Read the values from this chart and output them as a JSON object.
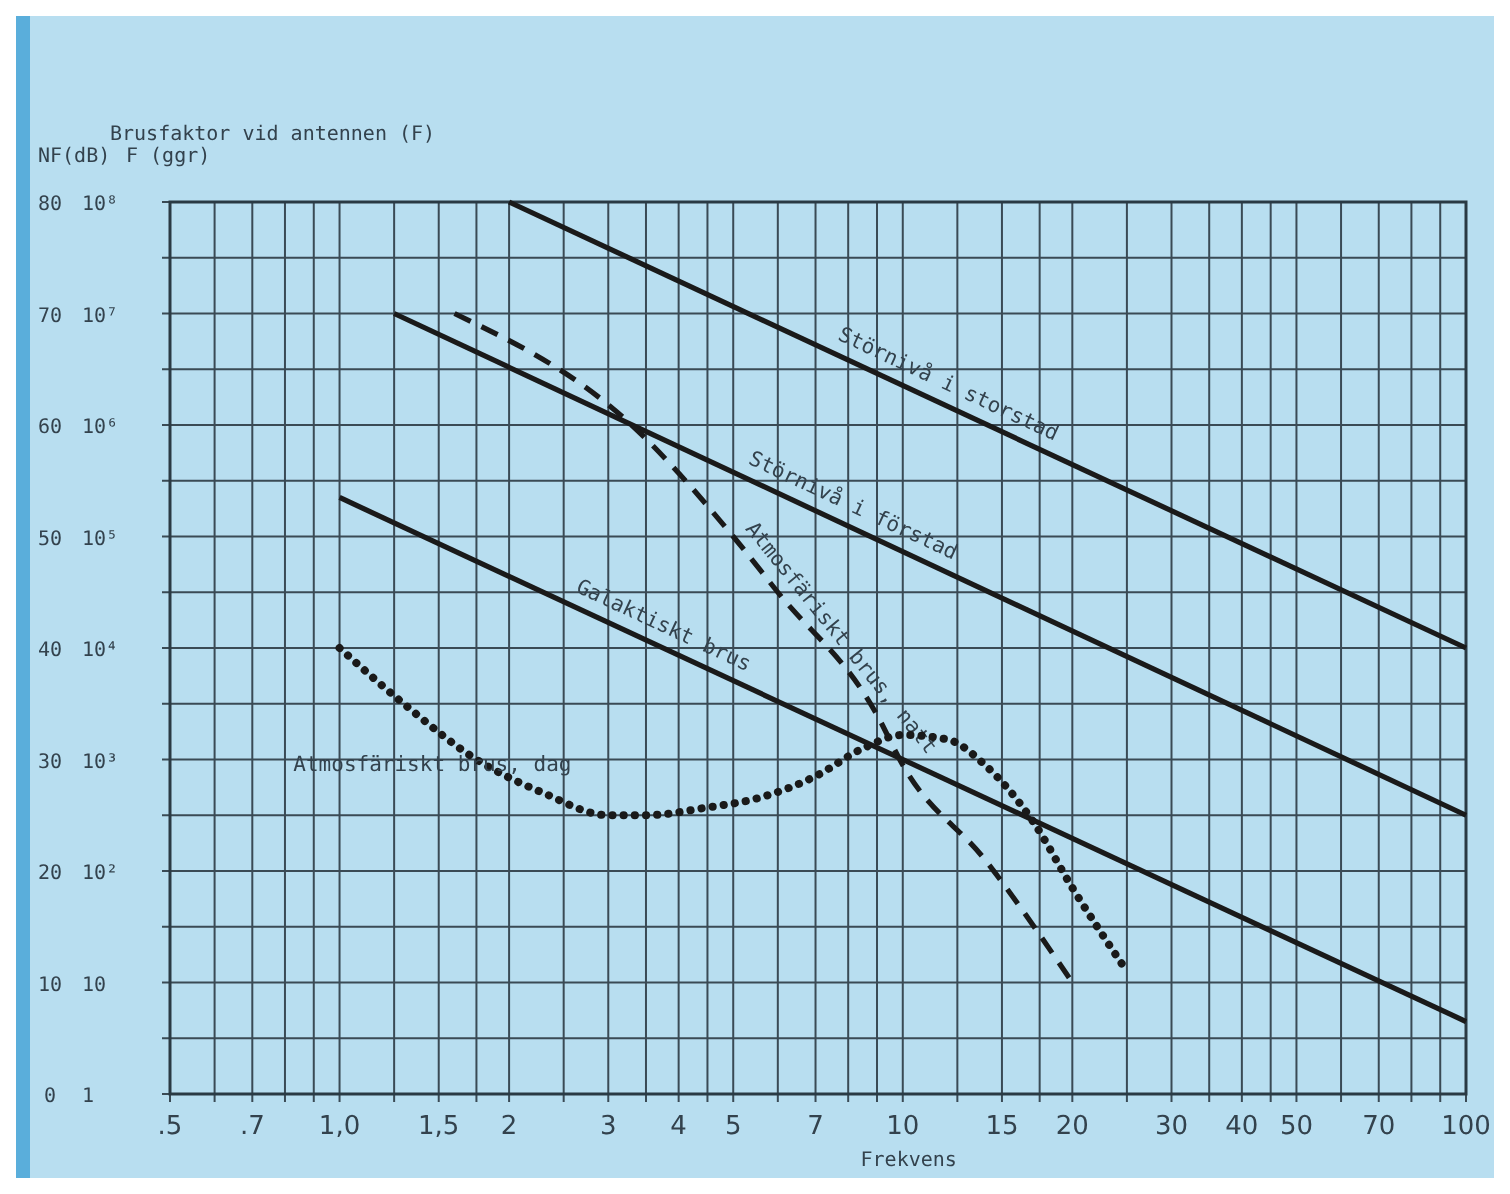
{
  "chart_data": {
    "type": "line",
    "title": "Brusfaktor vid antennen (F)",
    "xlabel": "Frekvens",
    "ylabel": "F (ggr)",
    "y2label": "NF(dB)",
    "log": "xy",
    "grid": true,
    "xlim": [
      0.5,
      100
    ],
    "xticks": [
      {
        "value": 0.5,
        "label": ".5"
      },
      {
        "value": 0.6,
        "label": null
      },
      {
        "value": 0.7,
        "label": ".7"
      },
      {
        "value": 0.8,
        "label": null
      },
      {
        "value": 0.9,
        "label": null
      },
      {
        "value": 1,
        "label": "1,0"
      },
      {
        "value": 1.25,
        "label": null
      },
      {
        "value": 1.5,
        "label": "1,5"
      },
      {
        "value": 1.75,
        "label": null
      },
      2,
      {
        "value": 2.5,
        "label": null
      },
      3,
      {
        "value": 3.5,
        "label": null
      },
      4,
      {
        "value": 4.5,
        "label": null
      },
      5,
      {
        "value": 6,
        "label": null
      },
      7,
      {
        "value": 8,
        "label": null
      },
      {
        "value": 9,
        "label": null
      },
      10,
      {
        "value": 12.5,
        "label": null
      },
      15,
      {
        "value": 17.5,
        "label": null
      },
      20,
      {
        "value": 25,
        "label": null
      },
      30,
      {
        "value": 35,
        "label": null
      },
      40,
      {
        "value": 45,
        "label": null
      },
      50,
      {
        "value": 60,
        "label": null
      },
      70,
      {
        "value": 80,
        "label": null
      },
      {
        "value": 90,
        "label": null
      },
      100
    ],
    "y2lim": [
      0,
      80
    ],
    "y2ticks": [
      0,
      {
        "value": 5,
        "label": null
      },
      10,
      {
        "value": 15,
        "label": null
      },
      20,
      {
        "value": 25,
        "label": null
      },
      30,
      {
        "value": 35,
        "label": null
      },
      40,
      {
        "value": 45,
        "label": null
      },
      50,
      {
        "value": 55,
        "label": null
      },
      60,
      {
        "value": 65,
        "label": null
      },
      70,
      {
        "value": 75,
        "label": null
      },
      80
    ],
    "ylim": [
      1,
      100000000
    ],
    "yticks": [
      1,
      10,
      {
        "value": 100,
        "label": "10²"
      },
      {
        "value": 1000,
        "label": "10³"
      },
      {
        "value": 10000,
        "label": "10⁴"
      },
      {
        "value": 100000,
        "label": "10⁵"
      },
      {
        "value": 1000000,
        "label": "10⁶"
      },
      {
        "value": 10000000,
        "label": "10⁷"
      },
      {
        "value": 100000000,
        "label": "10⁸"
      }
    ],
    "series": [
      {
        "name": "Störnivå i storstad",
        "color": "#1a1a1a",
        "line_style": "solid",
        "axis": "y2",
        "x": [
          2,
          100
        ],
        "values": [
          80,
          40
        ]
      },
      {
        "name": "Störnivå i förstad",
        "color": "#1a1a1a",
        "line_style": "solid",
        "axis": "y2",
        "x": [
          1.25,
          100
        ],
        "values": [
          70,
          25
        ]
      },
      {
        "name": "Galaktiskt brus",
        "color": "#1a1a1a",
        "line_style": "solid",
        "axis": "y2",
        "x": [
          1,
          100
        ],
        "values": [
          53.5,
          6.5
        ]
      },
      {
        "name": "Atmosfäriskt brus, natt",
        "color": "#1a1a1a",
        "line_style": "dashed",
        "axis": "y2",
        "x": [
          1.6,
          3.3,
          5,
          6,
          9,
          10,
          14,
          20
        ],
        "values": [
          70,
          60,
          50,
          45,
          34,
          29.5,
          21,
          10
        ]
      },
      {
        "name": "Atmosfäriskt brus, dag",
        "color": "#1a1a1a",
        "line_style": "dotted",
        "axis": "y2",
        "x": [
          1,
          1.3,
          1.75,
          2.3,
          3,
          3.5,
          4.5,
          5.5,
          7,
          8.5,
          10,
          12,
          14,
          17,
          20,
          25
        ],
        "values": [
          40,
          35,
          30,
          27,
          25,
          25,
          25.7,
          26.5,
          28.5,
          31,
          32.2,
          31.8,
          29.5,
          24.5,
          18.5,
          11
        ]
      }
    ]
  }
}
